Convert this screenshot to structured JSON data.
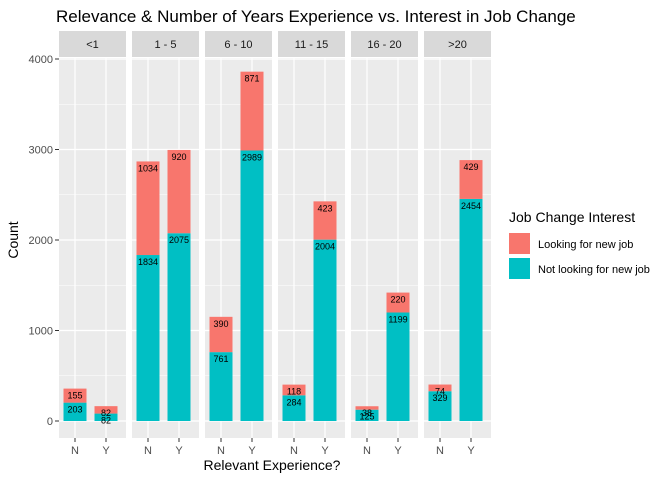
{
  "chart_data": {
    "type": "bar",
    "stacked": true,
    "faceted": true,
    "title": "Relevance & Number of Years Experience vs. Interest in Job Change",
    "xlabel": "Relevant Experience?",
    "ylabel": "Count",
    "ylim": [
      0,
      4000
    ],
    "yticks": [
      0,
      1000,
      2000,
      3000,
      4000
    ],
    "grid": true,
    "legend": {
      "title": "Job Change Interest",
      "position": "right",
      "entries": [
        {
          "name": "Looking for new job",
          "color": "#F8766D"
        },
        {
          "name": "Not looking for new job",
          "color": "#00BFC4"
        }
      ]
    },
    "categories": [
      "N",
      "Y"
    ],
    "facets": [
      {
        "label": "<1",
        "bars": [
          {
            "category": "N",
            "looking": 155,
            "not_looking": 203
          },
          {
            "category": "Y",
            "looking": 82,
            "not_looking": 82
          }
        ]
      },
      {
        "label": "1 - 5",
        "bars": [
          {
            "category": "N",
            "looking": 1034,
            "not_looking": 1834
          },
          {
            "category": "Y",
            "looking": 920,
            "not_looking": 2075
          }
        ]
      },
      {
        "label": "6 - 10",
        "bars": [
          {
            "category": "N",
            "looking": 390,
            "not_looking": 761
          },
          {
            "category": "Y",
            "looking": 871,
            "not_looking": 2989
          }
        ]
      },
      {
        "label": "11 - 15",
        "bars": [
          {
            "category": "N",
            "looking": 118,
            "not_looking": 284
          },
          {
            "category": "Y",
            "looking": 423,
            "not_looking": 2004
          }
        ]
      },
      {
        "label": "16 - 20",
        "bars": [
          {
            "category": "N",
            "looking": 38,
            "not_looking": 125
          },
          {
            "category": "Y",
            "looking": 220,
            "not_looking": 1199
          }
        ]
      },
      {
        "label": ">20",
        "bars": [
          {
            "category": "N",
            "looking": 74,
            "not_looking": 329
          },
          {
            "category": "Y",
            "looking": 429,
            "not_looking": 2454
          }
        ]
      }
    ]
  }
}
